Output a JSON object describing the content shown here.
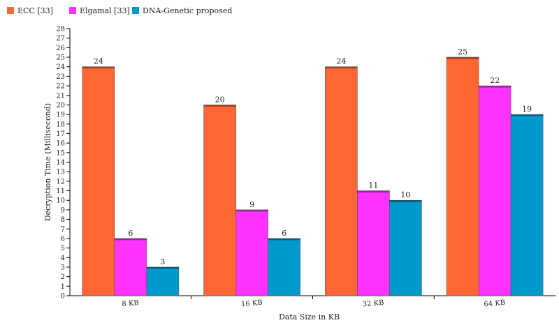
{
  "chart_data": {
    "type": "bar",
    "title": "",
    "xlabel": "Data Size in KB",
    "ylabel": "Decryption Time (Millisecond)",
    "categories": [
      "8 KB",
      "16 KB",
      "32 KB",
      "64 KB"
    ],
    "ylim": [
      0,
      28
    ],
    "ytick_step": 1,
    "grid": false,
    "legend_position": "top-left",
    "series": [
      {
        "name": "ECC [33]",
        "color": "#ff6633",
        "values": [
          24,
          20,
          24,
          25
        ]
      },
      {
        "name": "Elgamal [33]",
        "color": "#ff33ff",
        "values": [
          6,
          9,
          11,
          22
        ]
      },
      {
        "name": "DNA-Genetic proposed",
        "color": "#0099cc",
        "values": [
          3,
          6,
          10,
          19
        ]
      }
    ]
  }
}
